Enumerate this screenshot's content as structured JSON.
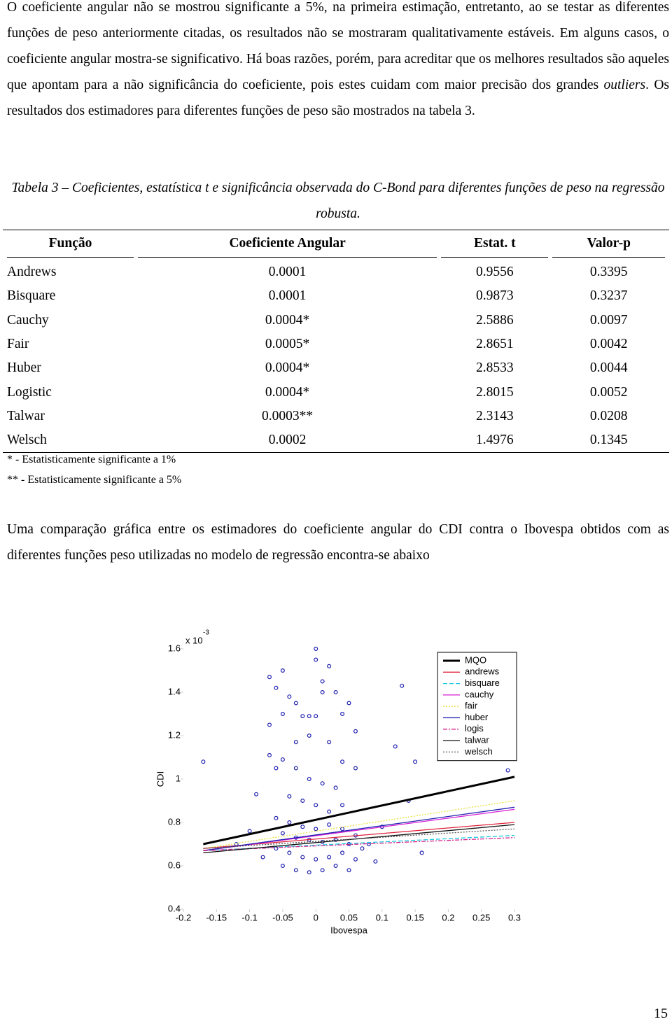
{
  "intro": {
    "part1": "O coeficiente angular não se mostrou significante a 5%, na primeira estimação, entretanto, ao se testar as diferentes funções de peso anteriormente citadas, os resultados não se mostraram qualitativamente estáveis. Em alguns casos, o coeficiente angular mostra-se significativo. Há boas razões, porém, para acreditar que os melhores resultados são aqueles que apontam para a não significância do coeficiente, pois estes cuidam com maior precisão dos grandes ",
    "emphasis": "outliers",
    "part2": ". Os resultados dos estimadores para diferentes funções de peso são mostrados na tabela 3."
  },
  "table": {
    "caption": "Tabela 3 – Coeficientes, estatística t e significância observada do C-Bond para diferentes funções de peso na regressão robusta.",
    "header": [
      "Função",
      "Coeficiente Angular",
      "Estat. t",
      "Valor-p"
    ],
    "rows": [
      [
        "Andrews",
        "0.0001",
        "0.9556",
        "0.3395"
      ],
      [
        "Bisquare",
        "0.0001",
        "0.9873",
        "0.3237"
      ],
      [
        "Cauchy",
        "0.0004*",
        "2.5886",
        "0.0097"
      ],
      [
        "Fair",
        "0.0005*",
        "2.8651",
        "0.0042"
      ],
      [
        "Huber",
        "0.0004*",
        "2.8533",
        "0.0044"
      ],
      [
        "Logistic",
        "0.0004*",
        "2.8015",
        "0.0052"
      ],
      [
        "Talwar",
        "0.0003**",
        "2.3143",
        "0.0208"
      ],
      [
        "Welsch",
        "0.0002",
        "1.4976",
        "0.1345"
      ]
    ],
    "notes": [
      "* - Estatisticamente significante a 1%",
      "** - Estatisticamente significante a 5%"
    ]
  },
  "paragraph2": "Uma comparação gráfica entre os estimadores do coeficiente angular do CDI contra o Ibovespa obtidos com as diferentes funções peso utilizadas no modelo de regressão encontra-se abaixo",
  "chart_data": {
    "type": "scatter",
    "x_label": "Ibovespa",
    "y_label": "CDI",
    "y_scale_label": "x 10",
    "y_scale_exponent": "-3",
    "xlim": [
      -0.2,
      0.3
    ],
    "ylim": [
      0.4,
      1.6
    ],
    "xticks": [
      -0.2,
      -0.15,
      -0.1,
      -0.05,
      0,
      0.05,
      0.1,
      0.15,
      0.2,
      0.25,
      0.3
    ],
    "yticks": [
      0.4,
      0.6,
      0.8,
      1,
      1.2,
      1.4,
      1.6
    ],
    "grid": false,
    "legend": "upper right",
    "scatter": {
      "color": "#1f1fb0",
      "x": [
        -0.17,
        0.29,
        -0.07,
        -0.06,
        -0.05,
        -0.05,
        -0.04,
        -0.03,
        -0.02,
        -0.01,
        0,
        0.01,
        0.02,
        0.03,
        0.04,
        0.05,
        0,
        0.01,
        -0.01,
        0.02,
        -0.03,
        0.06,
        -0.06,
        0.13,
        0.22,
        0.12,
        0.15,
        -0.09,
        -0.07,
        -0.05,
        -0.03,
        -0.01,
        0.01,
        0.03,
        0.04,
        -0.04,
        -0.02,
        0,
        0.02,
        0.04,
        -0.06,
        -0.04,
        -0.02,
        0,
        0.02,
        0.04,
        0.06,
        -0.05,
        -0.03,
        -0.01,
        0.01,
        0.03,
        0.05,
        0.07,
        -0.06,
        -0.04,
        -0.02,
        0,
        0.02,
        0.04,
        0.06,
        -0.05,
        -0.03,
        -0.01,
        0.01,
        0.03,
        0.05,
        0.08,
        0.1,
        0.09,
        -0.08,
        -0.1,
        0.16,
        -0.12,
        0.14,
        -0.07,
        0.06,
        0
      ],
      "values": [
        1.08,
        1.04,
        1.47,
        1.42,
        1.5,
        1.3,
        1.38,
        1.35,
        1.29,
        1.29,
        1.29,
        1.45,
        1.52,
        1.4,
        1.3,
        1.35,
        1.55,
        1.4,
        1.2,
        1.17,
        1.17,
        1.05,
        1.05,
        1.43,
        1.47,
        1.15,
        1.08,
        0.93,
        1.11,
        1.09,
        1.05,
        1,
        0.98,
        0.96,
        1.08,
        0.92,
        0.9,
        0.88,
        0.85,
        0.88,
        0.82,
        0.8,
        0.78,
        0.77,
        0.79,
        0.77,
        0.74,
        0.75,
        0.73,
        0.72,
        0.71,
        0.72,
        0.7,
        0.68,
        0.68,
        0.66,
        0.64,
        0.63,
        0.64,
        0.66,
        0.63,
        0.6,
        0.58,
        0.57,
        0.58,
        0.6,
        0.58,
        0.7,
        0.78,
        0.62,
        0.64,
        0.76,
        0.66,
        0.7,
        0.9,
        1.25,
        1.22,
        1.6
      ]
    },
    "line_x": [
      -0.17,
      0.3
    ],
    "series": [
      {
        "name": "MQO",
        "color": "#000000",
        "style": "solid",
        "linewidth": 3,
        "values": [
          0.7,
          1.01
        ]
      },
      {
        "name": "andrews",
        "color": "#e0203a",
        "style": "solid",
        "values": [
          0.68,
          0.8
        ]
      },
      {
        "name": "bisquare",
        "color": "#19c8e0",
        "style": "dashed",
        "values": [
          0.67,
          0.74
        ]
      },
      {
        "name": "cauchy",
        "color": "#d61fd6",
        "style": "solid",
        "values": [
          0.67,
          0.86
        ]
      },
      {
        "name": "fair",
        "color": "#e8e040",
        "style": "dotted",
        "values": [
          0.68,
          0.9
        ]
      },
      {
        "name": "huber",
        "color": "#2020b0",
        "style": "solid",
        "values": [
          0.67,
          0.87
        ]
      },
      {
        "name": "logis",
        "color": "#d6208a",
        "style": "dashdot",
        "values": [
          0.67,
          0.73
        ]
      },
      {
        "name": "talwar",
        "color": "#111111",
        "style": "solid",
        "values": [
          0.66,
          0.79
        ]
      },
      {
        "name": "welsch",
        "color": "#555555",
        "style": "dotted",
        "values": [
          0.68,
          0.77
        ]
      }
    ]
  },
  "page_number": "15"
}
